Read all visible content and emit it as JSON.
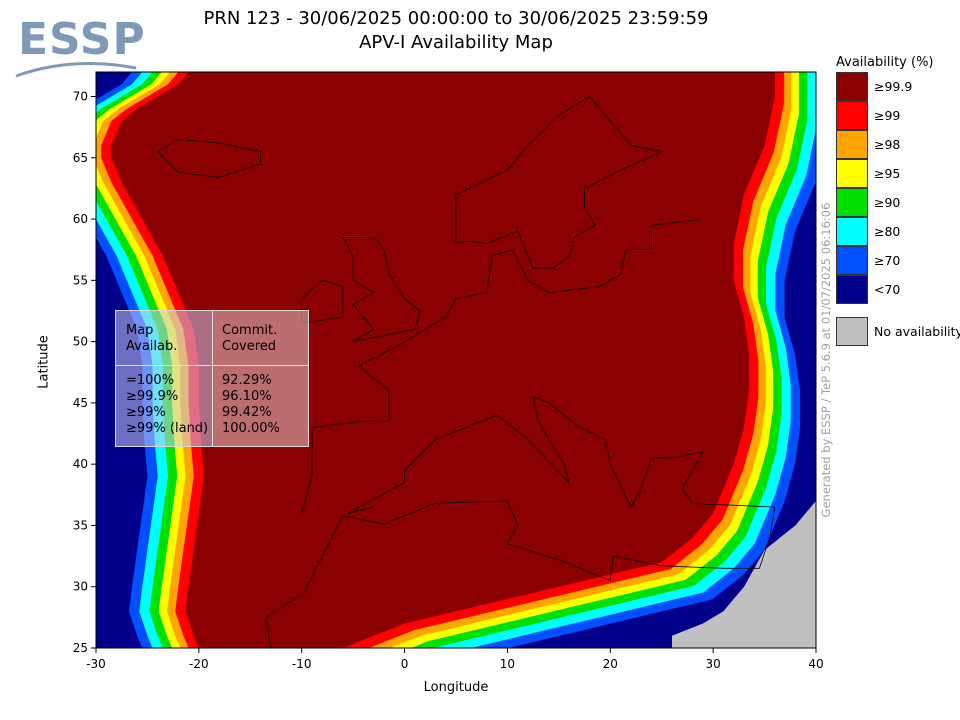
{
  "logo": {
    "text": "ESSP"
  },
  "header": {
    "title_line1": "PRN 123 - 30/06/2025 00:00:00 to 30/06/2025 23:59:59",
    "title_line2": "APV-I Availability Map"
  },
  "chart_data": {
    "type": "heatmap",
    "xlabel": "Longitude",
    "ylabel": "Latitude",
    "xlim": [
      -30,
      40
    ],
    "ylim": [
      25,
      72
    ],
    "x_ticks": [
      -30,
      -20,
      -10,
      0,
      10,
      20,
      30,
      40
    ],
    "y_ticks": [
      25,
      30,
      35,
      40,
      45,
      50,
      55,
      60,
      65,
      70
    ],
    "x_tick_labels": [
      "-30",
      "-20",
      "-10",
      "0",
      "10",
      "20",
      "30",
      "40"
    ],
    "y_tick_labels": [
      "25",
      "30",
      "35",
      "40",
      "45",
      "50",
      "55",
      "60",
      "65",
      "70"
    ],
    "legend_title": "Availability (%)",
    "legend": [
      {
        "label": "≥99.9",
        "color": "#8b0000"
      },
      {
        "label": "≥99",
        "color": "#ff0000"
      },
      {
        "label": "≥98",
        "color": "#ffa500"
      },
      {
        "label": "≥95",
        "color": "#ffff00"
      },
      {
        "label": "≥90",
        "color": "#00e000"
      },
      {
        "label": "≥80",
        "color": "#00ffff"
      },
      {
        "label": "≥70",
        "color": "#0050ff"
      },
      {
        "label": "<70",
        "color": "#00008b"
      }
    ],
    "no_availability": {
      "label": "No availability",
      "color": "#c0c0c0"
    },
    "coverage_table": {
      "headers": [
        "Map\nAvailab.",
        "Commit.\nCovered"
      ],
      "rows": [
        {
          "level": "=100%",
          "covered": "92.29%"
        },
        {
          "level": "≥99.9%",
          "covered": "96.10%"
        },
        {
          "level": "≥99%",
          "covered": "99.42%"
        },
        {
          "level": "≥99% (land)",
          "covered": "100.00%"
        }
      ]
    },
    "west_boundary": [
      [
        72,
        -21
      ],
      [
        71,
        -22
      ],
      [
        70,
        -24
      ],
      [
        69,
        -26
      ],
      [
        68,
        -27.5
      ],
      [
        67,
        -28
      ],
      [
        66,
        -28.5
      ],
      [
        65,
        -28.5
      ],
      [
        63,
        -27.5
      ],
      [
        60,
        -25.5
      ],
      [
        57,
        -23.5
      ],
      [
        54,
        -22
      ],
      [
        51,
        -20.5
      ],
      [
        48,
        -20
      ],
      [
        45,
        -20
      ],
      [
        42,
        -19.8
      ],
      [
        39,
        -19.5
      ],
      [
        36,
        -20
      ],
      [
        33,
        -20.5
      ],
      [
        30,
        -21
      ],
      [
        28,
        -21.3
      ],
      [
        26,
        -20.5
      ],
      [
        25,
        -20
      ]
    ],
    "south_boundary": [
      [
        -6,
        25
      ],
      [
        -3,
        26
      ],
      [
        0,
        27
      ],
      [
        5,
        28
      ],
      [
        10,
        29
      ],
      [
        15,
        30
      ],
      [
        20,
        31
      ],
      [
        25,
        32
      ],
      [
        28,
        34
      ],
      [
        30,
        36
      ],
      [
        31,
        38
      ],
      [
        32,
        40
      ],
      [
        33,
        43
      ],
      [
        33.5,
        46
      ],
      [
        33.5,
        49
      ],
      [
        33,
        52
      ],
      [
        32,
        55
      ],
      [
        32,
        58
      ],
      [
        33,
        62
      ],
      [
        35,
        66
      ],
      [
        36,
        70
      ],
      [
        36,
        72
      ]
    ],
    "no_availability_regions": [
      [
        [
          26,
          25
        ],
        [
          40,
          25
        ],
        [
          40,
          37
        ],
        [
          38,
          35
        ],
        [
          35,
          33
        ],
        [
          33,
          30
        ],
        [
          31,
          28
        ],
        [
          29,
          27
        ],
        [
          26,
          26
        ]
      ]
    ]
  },
  "watermark": "Generated by ESSP / TeP 5.6.9 at 01/07/2025 06:16:06"
}
